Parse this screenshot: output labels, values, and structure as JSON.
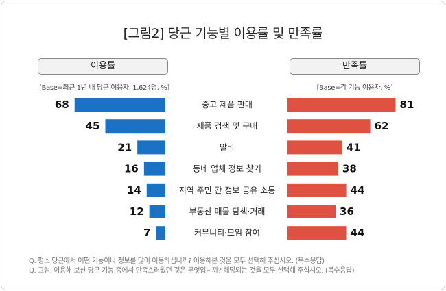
{
  "chart_data": {
    "type": "bar",
    "title": "[그림2] 당근 기능별 이용률 및 만족률",
    "categories": [
      "중고 제품 판매",
      "제품 검색 및 구매",
      "알바",
      "동네 업체 정보 찾기",
      "지역 주민 간 정보 공유·소통",
      "부동산 매물 탐색·거래",
      "커뮤니티·모임 참여"
    ],
    "series": [
      {
        "name": "이용률",
        "base": "[Base=최근 1년 내 당근 이용자, 1,624명, %]",
        "color": "#1b72c4",
        "values": [
          68,
          45,
          21,
          16,
          14,
          12,
          7
        ]
      },
      {
        "name": "만족률",
        "base": "[Base=각 기능 이용자, %]",
        "color": "#df5140",
        "values": [
          81,
          62,
          41,
          38,
          44,
          36,
          44
        ]
      }
    ],
    "notes": [
      "Q. 평소 당근에서 어떤 기능이나 정보를 많이 이용하십니까? 이용해본 것을 모두 선택해 주십시오. (복수응답)",
      "Q. 그럼, 이용해 보신 당근 기능 중에서 만족스러웠던 것은 무엇입니까? 해당되는 것을 모두 선택해 주십시오. (복수응답)"
    ]
  }
}
